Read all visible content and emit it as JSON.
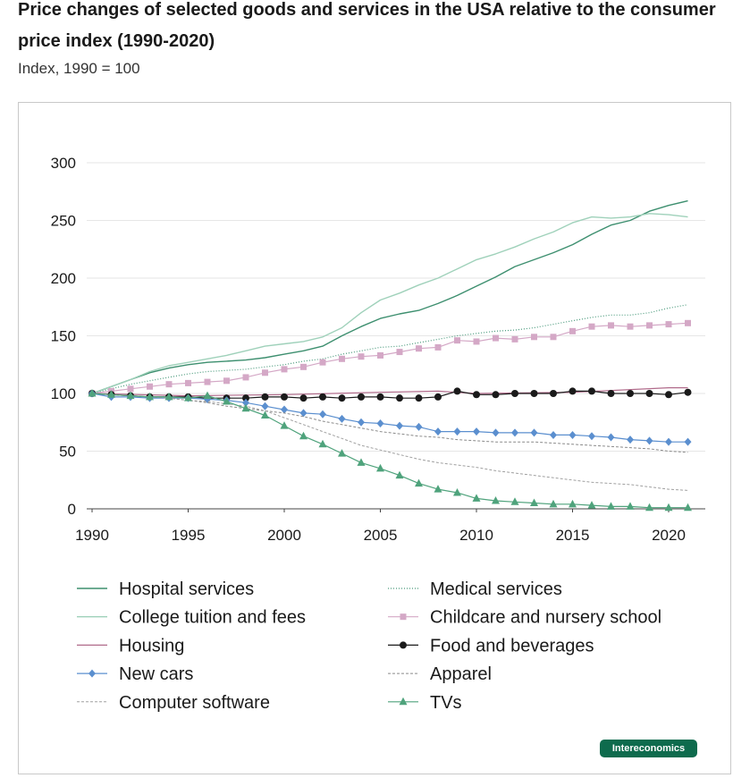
{
  "header": {
    "title": "Price changes of selected goods and services in the USA relative to the consumer price index (1990-2020)",
    "subtitle": "Index, 1990 = 100"
  },
  "logo": {
    "label": "Intereconomics",
    "color": "#0e6b4d"
  },
  "chart_data": {
    "type": "line",
    "title": "Price changes of selected goods and services in the USA relative to the consumer price index (1990-2020)",
    "subtitle": "Index, 1990 = 100",
    "xlabel": "",
    "ylabel": "",
    "xlim": [
      1990,
      2022
    ],
    "ylim": [
      0,
      300
    ],
    "x_ticks": [
      1990,
      1995,
      2000,
      2005,
      2010,
      2015,
      2020
    ],
    "y_ticks": [
      0,
      50,
      100,
      150,
      200,
      250,
      300
    ],
    "grid": "horizontal",
    "legend_position": "bottom",
    "series": [
      {
        "name": "Hospital services",
        "color": "#3d8f6f",
        "dash": "solid",
        "marker": "none",
        "width": 1.4,
        "x": [
          1990,
          1991,
          1992,
          1993,
          1994,
          1995,
          1996,
          1997,
          1998,
          1999,
          2000,
          2001,
          2002,
          2003,
          2004,
          2005,
          2006,
          2007,
          2008,
          2009,
          2010,
          2011,
          2012,
          2013,
          2014,
          2015,
          2016,
          2017,
          2018,
          2019,
          2020,
          2021
        ],
        "values": [
          100,
          106,
          112,
          118,
          122,
          125,
          127,
          128,
          129,
          131,
          134,
          137,
          141,
          150,
          158,
          165,
          169,
          172,
          178,
          185,
          193,
          201,
          210,
          216,
          222,
          229,
          238,
          246,
          250,
          258,
          263,
          267
        ]
      },
      {
        "name": "Medical services",
        "color": "#4a9a7c",
        "dash": "1 2",
        "marker": "none",
        "width": 1.2,
        "x": [
          1990,
          1991,
          1992,
          1993,
          1994,
          1995,
          1996,
          1997,
          1998,
          1999,
          2000,
          2001,
          2002,
          2003,
          2004,
          2005,
          2006,
          2007,
          2008,
          2009,
          2010,
          2011,
          2012,
          2013,
          2014,
          2015,
          2016,
          2017,
          2018,
          2019,
          2020,
          2021
        ],
        "values": [
          100,
          104,
          108,
          111,
          114,
          117,
          119,
          120,
          121,
          123,
          125,
          128,
          130,
          134,
          137,
          140,
          141,
          144,
          147,
          150,
          152,
          154,
          155,
          157,
          160,
          163,
          166,
          168,
          168,
          170,
          174,
          177
        ]
      },
      {
        "name": "College tuition and fees",
        "color": "#9fd1ba",
        "dash": "solid",
        "marker": "none",
        "width": 1.4,
        "x": [
          1990,
          1991,
          1992,
          1993,
          1994,
          1995,
          1996,
          1997,
          1998,
          1999,
          2000,
          2001,
          2002,
          2003,
          2004,
          2005,
          2006,
          2007,
          2008,
          2009,
          2010,
          2011,
          2012,
          2013,
          2014,
          2015,
          2016,
          2017,
          2018,
          2019,
          2020,
          2021
        ],
        "values": [
          100,
          106,
          112,
          119,
          124,
          127,
          130,
          133,
          137,
          141,
          143,
          145,
          149,
          157,
          170,
          181,
          187,
          194,
          200,
          208,
          216,
          221,
          227,
          234,
          240,
          248,
          253,
          252,
          253,
          256,
          255,
          253
        ]
      },
      {
        "name": "Childcare and nursery school",
        "color": "#d4a8c6",
        "dash": "solid",
        "marker": "square",
        "width": 1.2,
        "x": [
          1990,
          1991,
          1992,
          1993,
          1994,
          1995,
          1996,
          1997,
          1998,
          1999,
          2000,
          2001,
          2002,
          2003,
          2004,
          2005,
          2006,
          2007,
          2008,
          2009,
          2010,
          2011,
          2012,
          2013,
          2014,
          2015,
          2016,
          2017,
          2018,
          2019,
          2020,
          2021
        ],
        "values": [
          100,
          102,
          104,
          106,
          108,
          109,
          110,
          111,
          114,
          118,
          121,
          123,
          127,
          130,
          132,
          133,
          136,
          139,
          140,
          146,
          145,
          148,
          147,
          149,
          149,
          154,
          158,
          159,
          158,
          159,
          160,
          161
        ]
      },
      {
        "name": "Housing",
        "color": "#b06a8a",
        "dash": "solid",
        "marker": "none",
        "width": 1.2,
        "x": [
          1990,
          1995,
          2000,
          2005,
          2008,
          2010,
          2015,
          2020,
          2021
        ],
        "values": [
          100,
          98,
          99,
          101,
          102,
          100,
          101,
          105,
          105
        ]
      },
      {
        "name": "Food and beverages",
        "color": "#1a1a1a",
        "dash": "solid",
        "marker": "circle",
        "width": 1.2,
        "x": [
          1990,
          1991,
          1992,
          1993,
          1994,
          1995,
          1996,
          1997,
          1998,
          1999,
          2000,
          2001,
          2002,
          2003,
          2004,
          2005,
          2006,
          2007,
          2008,
          2009,
          2010,
          2011,
          2012,
          2013,
          2014,
          2015,
          2016,
          2017,
          2018,
          2019,
          2020,
          2021
        ],
        "values": [
          100,
          99,
          98,
          97,
          97,
          97,
          96,
          96,
          96,
          97,
          97,
          96,
          97,
          96,
          97,
          97,
          96,
          96,
          97,
          102,
          99,
          99,
          100,
          100,
          100,
          102,
          102,
          100,
          100,
          100,
          99,
          101
        ]
      },
      {
        "name": "New cars",
        "color": "#5b8fcf",
        "dash": "solid",
        "marker": "diamond",
        "width": 1.2,
        "x": [
          1990,
          1991,
          1992,
          1993,
          1994,
          1995,
          1996,
          1997,
          1998,
          1999,
          2000,
          2001,
          2002,
          2003,
          2004,
          2005,
          2006,
          2007,
          2008,
          2009,
          2010,
          2011,
          2012,
          2013,
          2014,
          2015,
          2016,
          2017,
          2018,
          2019,
          2020,
          2021
        ],
        "values": [
          100,
          97,
          97,
          96,
          96,
          96,
          95,
          94,
          92,
          89,
          86,
          83,
          82,
          78,
          75,
          74,
          72,
          71,
          67,
          67,
          67,
          66,
          66,
          66,
          64,
          64,
          63,
          62,
          60,
          59,
          58,
          58
        ]
      },
      {
        "name": "Apparel",
        "color": "#8a8a8a",
        "dash": "3 2",
        "marker": "none",
        "width": 1.0,
        "x": [
          1990,
          1991,
          1992,
          1993,
          1994,
          1995,
          1996,
          1997,
          1998,
          1999,
          2000,
          2001,
          2002,
          2003,
          2004,
          2005,
          2006,
          2007,
          2008,
          2009,
          2010,
          2011,
          2012,
          2013,
          2014,
          2015,
          2016,
          2017,
          2018,
          2019,
          2020,
          2021
        ],
        "values": [
          100,
          99,
          98,
          97,
          96,
          94,
          92,
          89,
          87,
          85,
          83,
          80,
          76,
          73,
          70,
          67,
          65,
          63,
          62,
          60,
          59,
          58,
          58,
          58,
          57,
          56,
          55,
          54,
          53,
          52,
          50,
          49
        ]
      },
      {
        "name": "Computer software",
        "color": "#a0a0a0",
        "dash": "3 2",
        "marker": "none",
        "width": 1.0,
        "x": [
          1990,
          1991,
          1992,
          1993,
          1994,
          1995,
          1996,
          1997,
          1998,
          1999,
          2000,
          2001,
          2002,
          2003,
          2004,
          2005,
          2006,
          2007,
          2008,
          2009,
          2010,
          2011,
          2012,
          2013,
          2014,
          2015,
          2016,
          2017,
          2018,
          2019,
          2020,
          2021
        ],
        "values": [
          100,
          99,
          98,
          97,
          96,
          94,
          93,
          91,
          89,
          85,
          79,
          73,
          67,
          61,
          55,
          51,
          47,
          43,
          40,
          38,
          36,
          33,
          31,
          29,
          27,
          25,
          23,
          22,
          21,
          19,
          17,
          16
        ]
      },
      {
        "name": "TVs",
        "color": "#4fa37c",
        "dash": "solid",
        "marker": "triangle",
        "width": 1.2,
        "x": [
          1990,
          1991,
          1992,
          1993,
          1994,
          1995,
          1996,
          1997,
          1998,
          1999,
          2000,
          2001,
          2002,
          2003,
          2004,
          2005,
          2006,
          2007,
          2008,
          2009,
          2010,
          2011,
          2012,
          2013,
          2014,
          2015,
          2016,
          2017,
          2018,
          2019,
          2020,
          2021
        ],
        "values": [
          100,
          99,
          98,
          97,
          97,
          96,
          98,
          93,
          87,
          81,
          72,
          63,
          56,
          48,
          40,
          35,
          29,
          22,
          17,
          14,
          9,
          7,
          6,
          5,
          4,
          4,
          3,
          2,
          2,
          1,
          1,
          1
        ]
      }
    ],
    "legend": [
      {
        "series": "Hospital services",
        "column": 0,
        "row": 0
      },
      {
        "series": "College tuition and fees",
        "column": 0,
        "row": 1
      },
      {
        "series": "Housing",
        "column": 0,
        "row": 2
      },
      {
        "series": "New cars",
        "column": 0,
        "row": 3
      },
      {
        "series": "Computer software",
        "column": 0,
        "row": 4
      },
      {
        "series": "Medical services",
        "column": 1,
        "row": 0
      },
      {
        "series": "Childcare and nursery school",
        "column": 1,
        "row": 1
      },
      {
        "series": "Food and beverages",
        "column": 1,
        "row": 2
      },
      {
        "series": "Apparel",
        "column": 1,
        "row": 3
      },
      {
        "series": "TVs",
        "column": 1,
        "row": 4
      }
    ]
  }
}
